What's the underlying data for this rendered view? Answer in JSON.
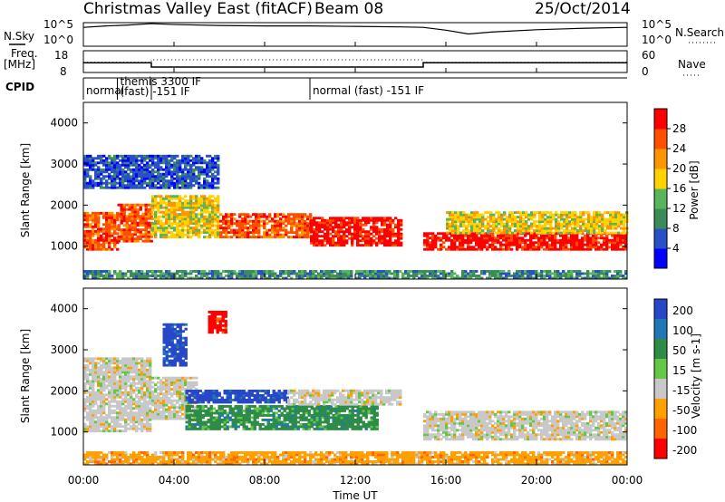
{
  "header": {
    "title": "Christmas Valley East (fitACF)",
    "beam": "Beam 08",
    "date": "25/Oct/2014"
  },
  "noise_panel": {
    "left_label": "N.Sky",
    "right_label": "N.Search",
    "left_ticks": [
      "10^5",
      "10^0"
    ],
    "right_ticks": [
      "10^5",
      "10^0"
    ]
  },
  "freq_panel": {
    "left_label_1": "Freq.",
    "left_label_2": "[MHz]",
    "right_label": "Nave",
    "left_ticks": [
      "18",
      "8"
    ],
    "right_ticks": [
      "60",
      "0"
    ]
  },
  "cpid_panel": {
    "label": "CPID",
    "segments": [
      {
        "start": 0,
        "end": 1.5,
        "text": "normal"
      },
      {
        "start": 1.5,
        "end": 10,
        "text": "themis 3300 IF"
      },
      {
        "start": 3,
        "end": 10,
        "text": "(fast) -151 IF"
      },
      {
        "start": 10,
        "end": 24,
        "text": "normal (fast) -151 IF"
      }
    ]
  },
  "time_axis": {
    "title": "Time UT",
    "ticks": [
      "00:00",
      "04:00",
      "08:00",
      "12:00",
      "16:00",
      "20:00",
      "00:00"
    ]
  },
  "power_panel": {
    "ylabel": "Slant Range [km]",
    "yticks": [
      "4000",
      "3000",
      "2000",
      "1000"
    ],
    "colorbar_title": "Power [dB]",
    "colorbar_ticks": [
      "28",
      "24",
      "20",
      "16",
      "12",
      "8",
      "4"
    ]
  },
  "velocity_panel": {
    "ylabel": "Slant Range [km]",
    "yticks": [
      "4000",
      "3000",
      "2000",
      "1000"
    ],
    "colorbar_title": "Velocity [m s-1]",
    "colorbar_ticks": [
      "200",
      "100",
      "50",
      "15",
      "-15",
      "-50",
      "-100",
      "-200"
    ]
  },
  "colors": {
    "power_scale": [
      "#0000ff",
      "#2850c8",
      "#3c8c5a",
      "#5ab45a",
      "#ffd200",
      "#ff9600",
      "#ff5000",
      "#ff0000"
    ],
    "velocity_scale": [
      "#2846c8",
      "#1e78b4",
      "#2d8c46",
      "#64c846",
      "#c8c8c8",
      "#ffa000",
      "#ff6400",
      "#ff0000"
    ]
  },
  "chart_data": [
    {
      "type": "line",
      "name": "noise",
      "xlim": [
        0,
        24
      ],
      "series": [
        {
          "name": "N.Sky",
          "x": [
            0,
            1,
            2,
            3,
            4,
            6,
            8,
            10,
            12,
            14,
            15,
            16,
            17,
            18,
            20,
            22,
            24
          ],
          "y": [
            4.0,
            4.3,
            4.5,
            4.8,
            4.6,
            4.4,
            4.3,
            4.3,
            4.2,
            4.1,
            4.0,
            3.4,
            2.6,
            3.0,
            3.5,
            3.8,
            4.0
          ]
        }
      ]
    },
    {
      "type": "line",
      "name": "frequency",
      "xlim": [
        0,
        24
      ],
      "ylim": [
        8,
        18
      ],
      "series": [
        {
          "name": "Freq",
          "x": [
            0,
            3,
            3,
            15,
            15,
            24
          ],
          "y": [
            12.5,
            12.5,
            10.5,
            10.5,
            12.5,
            12.5
          ]
        },
        {
          "name": "Nave",
          "x": [
            0,
            3,
            3,
            15,
            15,
            24
          ],
          "y": [
            28,
            28,
            35,
            35,
            28,
            28
          ]
        }
      ]
    },
    {
      "type": "heatmap",
      "name": "power",
      "xlim": [
        0,
        24
      ],
      "ylim": [
        200,
        4500
      ],
      "units": "dB",
      "bands": [
        {
          "t0": 0.0,
          "t1": 1.5,
          "r0": 900,
          "r1": 1800,
          "level": 6
        },
        {
          "t0": 1.5,
          "t1": 3.0,
          "r0": 1100,
          "r1": 2000,
          "level": 6
        },
        {
          "t0": 3.0,
          "t1": 6.0,
          "r0": 1200,
          "r1": 2200,
          "level": 4
        },
        {
          "t0": 6.0,
          "t1": 10.0,
          "r0": 1200,
          "r1": 1800,
          "level": 6
        },
        {
          "t0": 10.0,
          "t1": 14.0,
          "r0": 1000,
          "r1": 1700,
          "level": 7
        },
        {
          "t0": 15.0,
          "t1": 24.0,
          "r0": 900,
          "r1": 1300,
          "level": 7
        },
        {
          "t0": 16.0,
          "t1": 24.0,
          "r0": 1300,
          "r1": 1800,
          "level": 4
        },
        {
          "t0": 0.0,
          "t1": 6.0,
          "r0": 2400,
          "r1": 3200,
          "level": 1
        },
        {
          "t0": 0.0,
          "t1": 24.0,
          "r0": 200,
          "r1": 400,
          "level": 2
        }
      ]
    },
    {
      "type": "heatmap",
      "name": "velocity",
      "xlim": [
        0,
        24
      ],
      "ylim": [
        200,
        4500
      ],
      "units": "m s-1",
      "bands": [
        {
          "t0": 0.0,
          "t1": 3.0,
          "r0": 1000,
          "r1": 2800,
          "value": 0
        },
        {
          "t0": 3.0,
          "t1": 5.0,
          "r0": 1300,
          "r1": 2300,
          "value": 0
        },
        {
          "t0": 4.5,
          "t1": 9.0,
          "r0": 1700,
          "r1": 2000,
          "value": 200
        },
        {
          "t0": 4.5,
          "t1": 13.0,
          "r0": 1050,
          "r1": 1650,
          "value": 40
        },
        {
          "t0": 9.0,
          "t1": 14.0,
          "r0": 1650,
          "r1": 2000,
          "value": 0
        },
        {
          "t0": 15.0,
          "t1": 24.0,
          "r0": 800,
          "r1": 1500,
          "value": 0
        },
        {
          "t0": 3.5,
          "t1": 4.5,
          "r0": 2600,
          "r1": 3600,
          "value": 200
        },
        {
          "t0": 5.5,
          "t1": 6.3,
          "r0": 3400,
          "r1": 3900,
          "value": -200
        },
        {
          "t0": 0.0,
          "t1": 24.0,
          "r0": 200,
          "r1": 500,
          "value": -40
        }
      ]
    }
  ]
}
